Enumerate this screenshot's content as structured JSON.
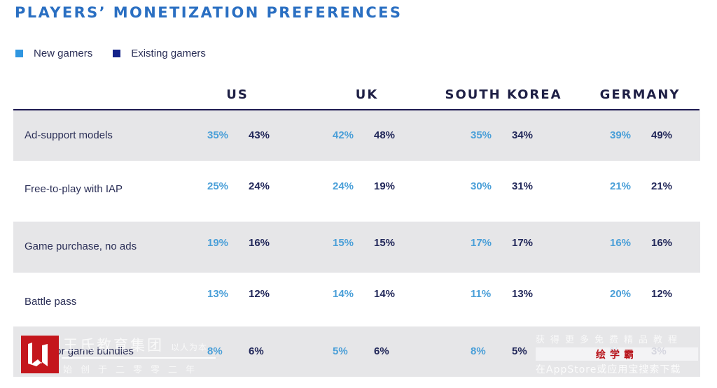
{
  "title": "PLAYERS’ MONETIZATION PREFERENCES",
  "legend": [
    {
      "label": "New gamers",
      "color": "#2f96e0"
    },
    {
      "label": "Existing gamers",
      "color": "#14238a"
    }
  ],
  "columns": [
    "US",
    "UK",
    "SOUTH KOREA",
    "GERMANY"
  ],
  "colors": {
    "new": "#4a9fd8",
    "existing": "#22285a",
    "row_alt": "#e6e6e8",
    "title": "#2a6fc2"
  },
  "rows": [
    {
      "label": "Ad-support models",
      "values": [
        [
          "35%",
          "43%"
        ],
        [
          "42%",
          "48%"
        ],
        [
          "35%",
          "34%"
        ],
        [
          "39%",
          "49%"
        ]
      ]
    },
    {
      "label": "Free-to-play with IAP",
      "values": [
        [
          "25%",
          "24%"
        ],
        [
          "24%",
          "19%"
        ],
        [
          "30%",
          "31%"
        ],
        [
          "21%",
          "21%"
        ]
      ]
    },
    {
      "label": "Game purchase, no ads",
      "values": [
        [
          "19%",
          "16%"
        ],
        [
          "15%",
          "15%"
        ],
        [
          "17%",
          "17%"
        ],
        [
          "16%",
          "16%"
        ]
      ]
    },
    {
      "label": "Battle pass",
      "values": [
        [
          "13%",
          "12%"
        ],
        [
          "14%",
          "14%"
        ],
        [
          "11%",
          "13%"
        ],
        [
          "20%",
          "12%"
        ]
      ]
    },
    {
      "label": "ly fee for game bundles",
      "values": [
        [
          "8%",
          "6%"
        ],
        [
          "5%",
          "6%"
        ],
        [
          "8%",
          "5%"
        ],
        [
          "%",
          "3%"
        ]
      ]
    }
  ],
  "watermarks": {
    "left_line1": "王氏教育集团",
    "left_line1_small": "以人为本",
    "left_line2": "始创于二零零二年",
    "right_line1": "获得更多免费精品教程",
    "right_brand": "绘学霸",
    "right_line2": "在AppStore或应用宝搜索下载"
  }
}
